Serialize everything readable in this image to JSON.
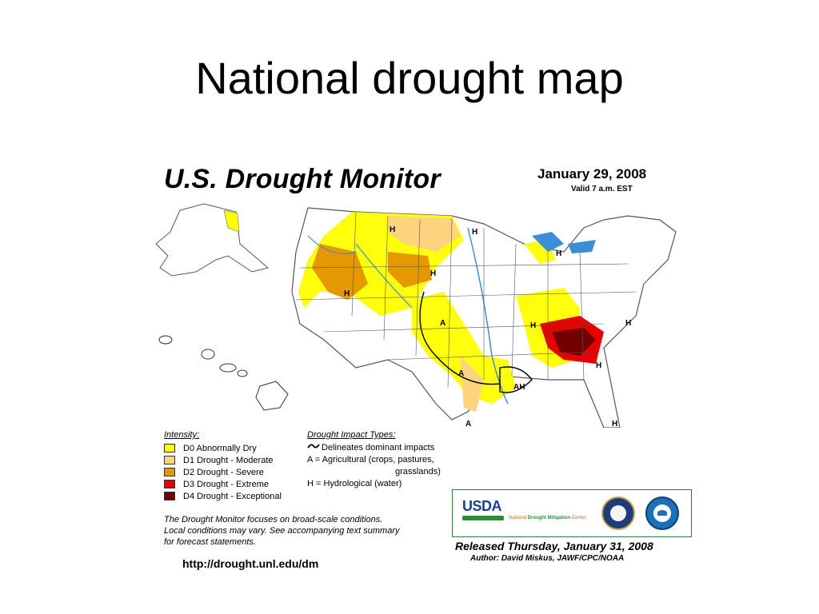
{
  "slide": {
    "title": "National drought map"
  },
  "map": {
    "title": "U.S. Drought Monitor",
    "date": "January 29, 2008",
    "valid": "Valid 7 a.m. EST",
    "region_labels": [
      "H",
      "H",
      "H",
      "H",
      "H",
      "H",
      "A",
      "A",
      "A",
      "H",
      "AH",
      "H",
      "H"
    ],
    "colors": {
      "D0": "#ffff00",
      "D1": "#fcd37f",
      "D2": "#e69800",
      "D3": "#e60000",
      "D4": "#730000",
      "water": "#3c8fd6",
      "state_line": "#555555"
    }
  },
  "legend": {
    "intensity_heading": "Intensity:",
    "intensity": [
      {
        "label": "D0 Abnormally Dry",
        "color": "#ffff00"
      },
      {
        "label": "D1 Drought - Moderate",
        "color": "#fcd37f"
      },
      {
        "label": "D2 Drought - Severe",
        "color": "#e69800"
      },
      {
        "label": "D3 Drought - Extreme",
        "color": "#e60000"
      },
      {
        "label": "D4 Drought - Exceptional",
        "color": "#730000"
      }
    ],
    "impact_heading": "Drought Impact Types:",
    "impact_dominant": "Delineates dominant impacts",
    "impact_ag": "A = Agricultural (crops, pastures,",
    "impact_ag_cont": "grasslands)",
    "impact_hydro": "H = Hydrological (water)"
  },
  "note": {
    "line1": "The Drought Monitor focuses on broad-scale conditions.",
    "line2": "Local conditions may vary. See accompanying text summary",
    "line3": "for forecast statements."
  },
  "url": "http://drought.unl.edu/dm",
  "logos": {
    "usda": "USDA",
    "ndmc_pre": "National",
    "ndmc_mid": "Drought Mitigation",
    "ndmc_post": "Center"
  },
  "release": "Released Thursday, January 31, 2008",
  "author": "Author: David Miskus, JAWF/CPC/NOAA"
}
